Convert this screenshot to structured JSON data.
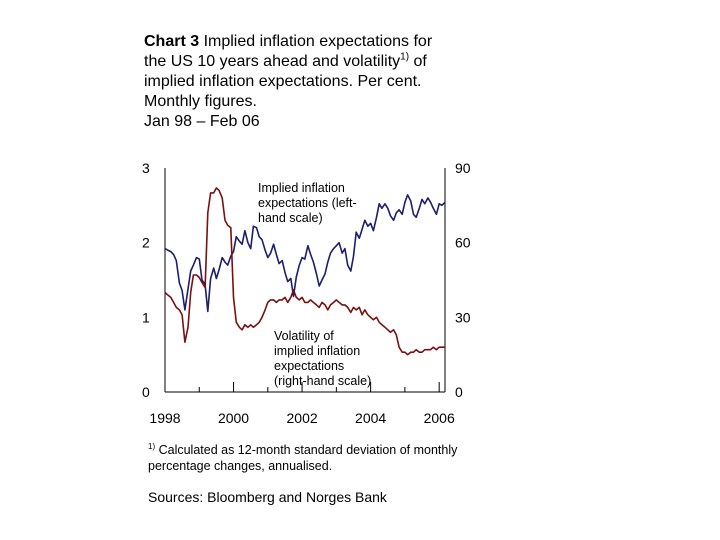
{
  "title": {
    "prefix": "Chart 3",
    "line1": "Implied inflation expectations for",
    "line2a": "the US 10 years ahead and volatility",
    "line2_sup": "1)",
    "line2b": " of",
    "line3": "implied inflation expectations. Per cent.",
    "line4": "Monthly figures.",
    "line5": "Jan 98 – Feb 06"
  },
  "chart_data": {
    "type": "line",
    "xlim": [
      1998,
      2006.17
    ],
    "x_ticks": [
      "1998",
      "2000",
      "2002",
      "2004",
      "2006"
    ],
    "left_axis": {
      "range": [
        0,
        3
      ],
      "ticks": [
        "0",
        "1",
        "2",
        "3"
      ]
    },
    "right_axis": {
      "range": [
        0,
        90
      ],
      "ticks": [
        "0",
        "30",
        "60",
        "90"
      ]
    },
    "grid": false,
    "annotations": [
      {
        "name": "implied",
        "lines": [
          "Implied inflation",
          "expectations (left-",
          "hand scale)"
        ]
      },
      {
        "name": "volatility",
        "lines": [
          "Volatility of",
          "implied inflation",
          "expectations",
          "(right-hand scale)"
        ]
      }
    ],
    "series": [
      {
        "axis": "left",
        "color": "#1a1f6e",
        "values": [
          [
            1998.0,
            1.92
          ],
          [
            1998.08,
            1.9
          ],
          [
            1998.17,
            1.88
          ],
          [
            1998.25,
            1.84
          ],
          [
            1998.33,
            1.76
          ],
          [
            1998.42,
            1.46
          ],
          [
            1998.5,
            1.36
          ],
          [
            1998.58,
            1.1
          ],
          [
            1998.67,
            1.38
          ],
          [
            1998.75,
            1.62
          ],
          [
            1998.83,
            1.7
          ],
          [
            1998.92,
            1.8
          ],
          [
            1999.0,
            1.78
          ],
          [
            1999.08,
            1.5
          ],
          [
            1999.17,
            1.44
          ],
          [
            1999.25,
            1.08
          ],
          [
            1999.33,
            1.52
          ],
          [
            1999.42,
            1.66
          ],
          [
            1999.5,
            1.52
          ],
          [
            1999.58,
            1.64
          ],
          [
            1999.67,
            1.8
          ],
          [
            1999.75,
            1.74
          ],
          [
            1999.83,
            1.7
          ],
          [
            1999.92,
            1.82
          ],
          [
            2000.0,
            1.88
          ],
          [
            2000.08,
            2.08
          ],
          [
            2000.17,
            2.02
          ],
          [
            2000.25,
            1.98
          ],
          [
            2000.33,
            2.16
          ],
          [
            2000.42,
            2.0
          ],
          [
            2000.5,
            1.92
          ],
          [
            2000.58,
            2.22
          ],
          [
            2000.67,
            2.2
          ],
          [
            2000.75,
            2.08
          ],
          [
            2000.83,
            2.04
          ],
          [
            2000.92,
            1.9
          ],
          [
            2001.0,
            1.8
          ],
          [
            2001.08,
            1.86
          ],
          [
            2001.17,
            1.98
          ],
          [
            2001.25,
            1.84
          ],
          [
            2001.33,
            1.72
          ],
          [
            2001.42,
            1.76
          ],
          [
            2001.5,
            1.6
          ],
          [
            2001.58,
            1.48
          ],
          [
            2001.67,
            1.52
          ],
          [
            2001.75,
            1.28
          ],
          [
            2001.83,
            1.54
          ],
          [
            2001.92,
            1.7
          ],
          [
            2002.0,
            1.8
          ],
          [
            2002.08,
            1.78
          ],
          [
            2002.17,
            1.96
          ],
          [
            2002.25,
            1.84
          ],
          [
            2002.33,
            1.74
          ],
          [
            2002.42,
            1.58
          ],
          [
            2002.5,
            1.42
          ],
          [
            2002.58,
            1.5
          ],
          [
            2002.67,
            1.58
          ],
          [
            2002.75,
            1.74
          ],
          [
            2002.83,
            1.86
          ],
          [
            2002.92,
            1.92
          ],
          [
            2003.0,
            1.96
          ],
          [
            2003.08,
            2.0
          ],
          [
            2003.17,
            1.86
          ],
          [
            2003.25,
            1.92
          ],
          [
            2003.33,
            1.7
          ],
          [
            2003.42,
            1.62
          ],
          [
            2003.5,
            1.82
          ],
          [
            2003.58,
            2.14
          ],
          [
            2003.67,
            2.06
          ],
          [
            2003.75,
            2.18
          ],
          [
            2003.83,
            2.3
          ],
          [
            2003.92,
            2.22
          ],
          [
            2004.0,
            2.26
          ],
          [
            2004.08,
            2.16
          ],
          [
            2004.17,
            2.34
          ],
          [
            2004.25,
            2.52
          ],
          [
            2004.33,
            2.46
          ],
          [
            2004.42,
            2.52
          ],
          [
            2004.5,
            2.46
          ],
          [
            2004.58,
            2.36
          ],
          [
            2004.67,
            2.3
          ],
          [
            2004.75,
            2.4
          ],
          [
            2004.83,
            2.44
          ],
          [
            2004.92,
            2.38
          ],
          [
            2005.0,
            2.54
          ],
          [
            2005.08,
            2.64
          ],
          [
            2005.17,
            2.56
          ],
          [
            2005.25,
            2.38
          ],
          [
            2005.33,
            2.34
          ],
          [
            2005.42,
            2.46
          ],
          [
            2005.5,
            2.58
          ],
          [
            2005.58,
            2.52
          ],
          [
            2005.67,
            2.6
          ],
          [
            2005.75,
            2.54
          ],
          [
            2005.83,
            2.46
          ],
          [
            2005.92,
            2.38
          ],
          [
            2006.0,
            2.52
          ],
          [
            2006.08,
            2.5
          ],
          [
            2006.17,
            2.54
          ]
        ]
      },
      {
        "axis": "right",
        "color": "#7a1010",
        "values": [
          [
            1998.0,
            40
          ],
          [
            1998.08,
            39
          ],
          [
            1998.17,
            38
          ],
          [
            1998.25,
            36
          ],
          [
            1998.33,
            34
          ],
          [
            1998.42,
            33
          ],
          [
            1998.5,
            31
          ],
          [
            1998.58,
            20
          ],
          [
            1998.67,
            26
          ],
          [
            1998.75,
            40
          ],
          [
            1998.83,
            47
          ],
          [
            1998.92,
            47
          ],
          [
            1999.0,
            46
          ],
          [
            1999.08,
            44
          ],
          [
            1999.17,
            42
          ],
          [
            1999.25,
            72
          ],
          [
            1999.33,
            80
          ],
          [
            1999.42,
            80
          ],
          [
            1999.5,
            82
          ],
          [
            1999.58,
            81
          ],
          [
            1999.67,
            78
          ],
          [
            1999.75,
            69
          ],
          [
            1999.83,
            67
          ],
          [
            1999.92,
            66
          ],
          [
            2000.0,
            38
          ],
          [
            2000.08,
            28
          ],
          [
            2000.17,
            26
          ],
          [
            2000.25,
            25
          ],
          [
            2000.33,
            27
          ],
          [
            2000.42,
            26
          ],
          [
            2000.5,
            27
          ],
          [
            2000.58,
            26
          ],
          [
            2000.67,
            27
          ],
          [
            2000.75,
            28
          ],
          [
            2000.83,
            30
          ],
          [
            2000.92,
            33
          ],
          [
            2001.0,
            36
          ],
          [
            2001.08,
            37
          ],
          [
            2001.17,
            37
          ],
          [
            2001.25,
            36
          ],
          [
            2001.33,
            37
          ],
          [
            2001.42,
            37
          ],
          [
            2001.5,
            38
          ],
          [
            2001.58,
            36
          ],
          [
            2001.67,
            38
          ],
          [
            2001.75,
            41
          ],
          [
            2001.83,
            38
          ],
          [
            2001.92,
            37
          ],
          [
            2002.0,
            38
          ],
          [
            2002.08,
            36
          ],
          [
            2002.17,
            36
          ],
          [
            2002.25,
            37
          ],
          [
            2002.33,
            36
          ],
          [
            2002.42,
            35
          ],
          [
            2002.5,
            34
          ],
          [
            2002.58,
            36
          ],
          [
            2002.67,
            35
          ],
          [
            2002.75,
            33
          ],
          [
            2002.83,
            35
          ],
          [
            2002.92,
            36
          ],
          [
            2003.0,
            37
          ],
          [
            2003.08,
            36
          ],
          [
            2003.17,
            35
          ],
          [
            2003.25,
            35
          ],
          [
            2003.33,
            34
          ],
          [
            2003.42,
            32
          ],
          [
            2003.5,
            34
          ],
          [
            2003.58,
            33
          ],
          [
            2003.67,
            34
          ],
          [
            2003.75,
            31
          ],
          [
            2003.83,
            33
          ],
          [
            2003.92,
            31
          ],
          [
            2004.0,
            30
          ],
          [
            2004.08,
            29
          ],
          [
            2004.17,
            30
          ],
          [
            2004.25,
            28
          ],
          [
            2004.33,
            27
          ],
          [
            2004.42,
            26
          ],
          [
            2004.5,
            25
          ],
          [
            2004.58,
            24
          ],
          [
            2004.67,
            25
          ],
          [
            2004.75,
            23
          ],
          [
            2004.83,
            18
          ],
          [
            2004.92,
            16
          ],
          [
            2005.0,
            16
          ],
          [
            2005.08,
            15
          ],
          [
            2005.17,
            16
          ],
          [
            2005.25,
            16
          ],
          [
            2005.33,
            17
          ],
          [
            2005.42,
            16
          ],
          [
            2005.5,
            16
          ],
          [
            2005.58,
            17
          ],
          [
            2005.67,
            17
          ],
          [
            2005.75,
            17
          ],
          [
            2005.83,
            18
          ],
          [
            2005.92,
            17
          ],
          [
            2006.0,
            18
          ],
          [
            2006.08,
            18
          ],
          [
            2006.17,
            18
          ]
        ]
      }
    ]
  },
  "footnote": {
    "marker": "1)",
    "text": " Calculated as 12-month standard deviation of monthly percentage changes, annualised."
  },
  "sources": "Sources: Bloomberg and Norges Bank"
}
